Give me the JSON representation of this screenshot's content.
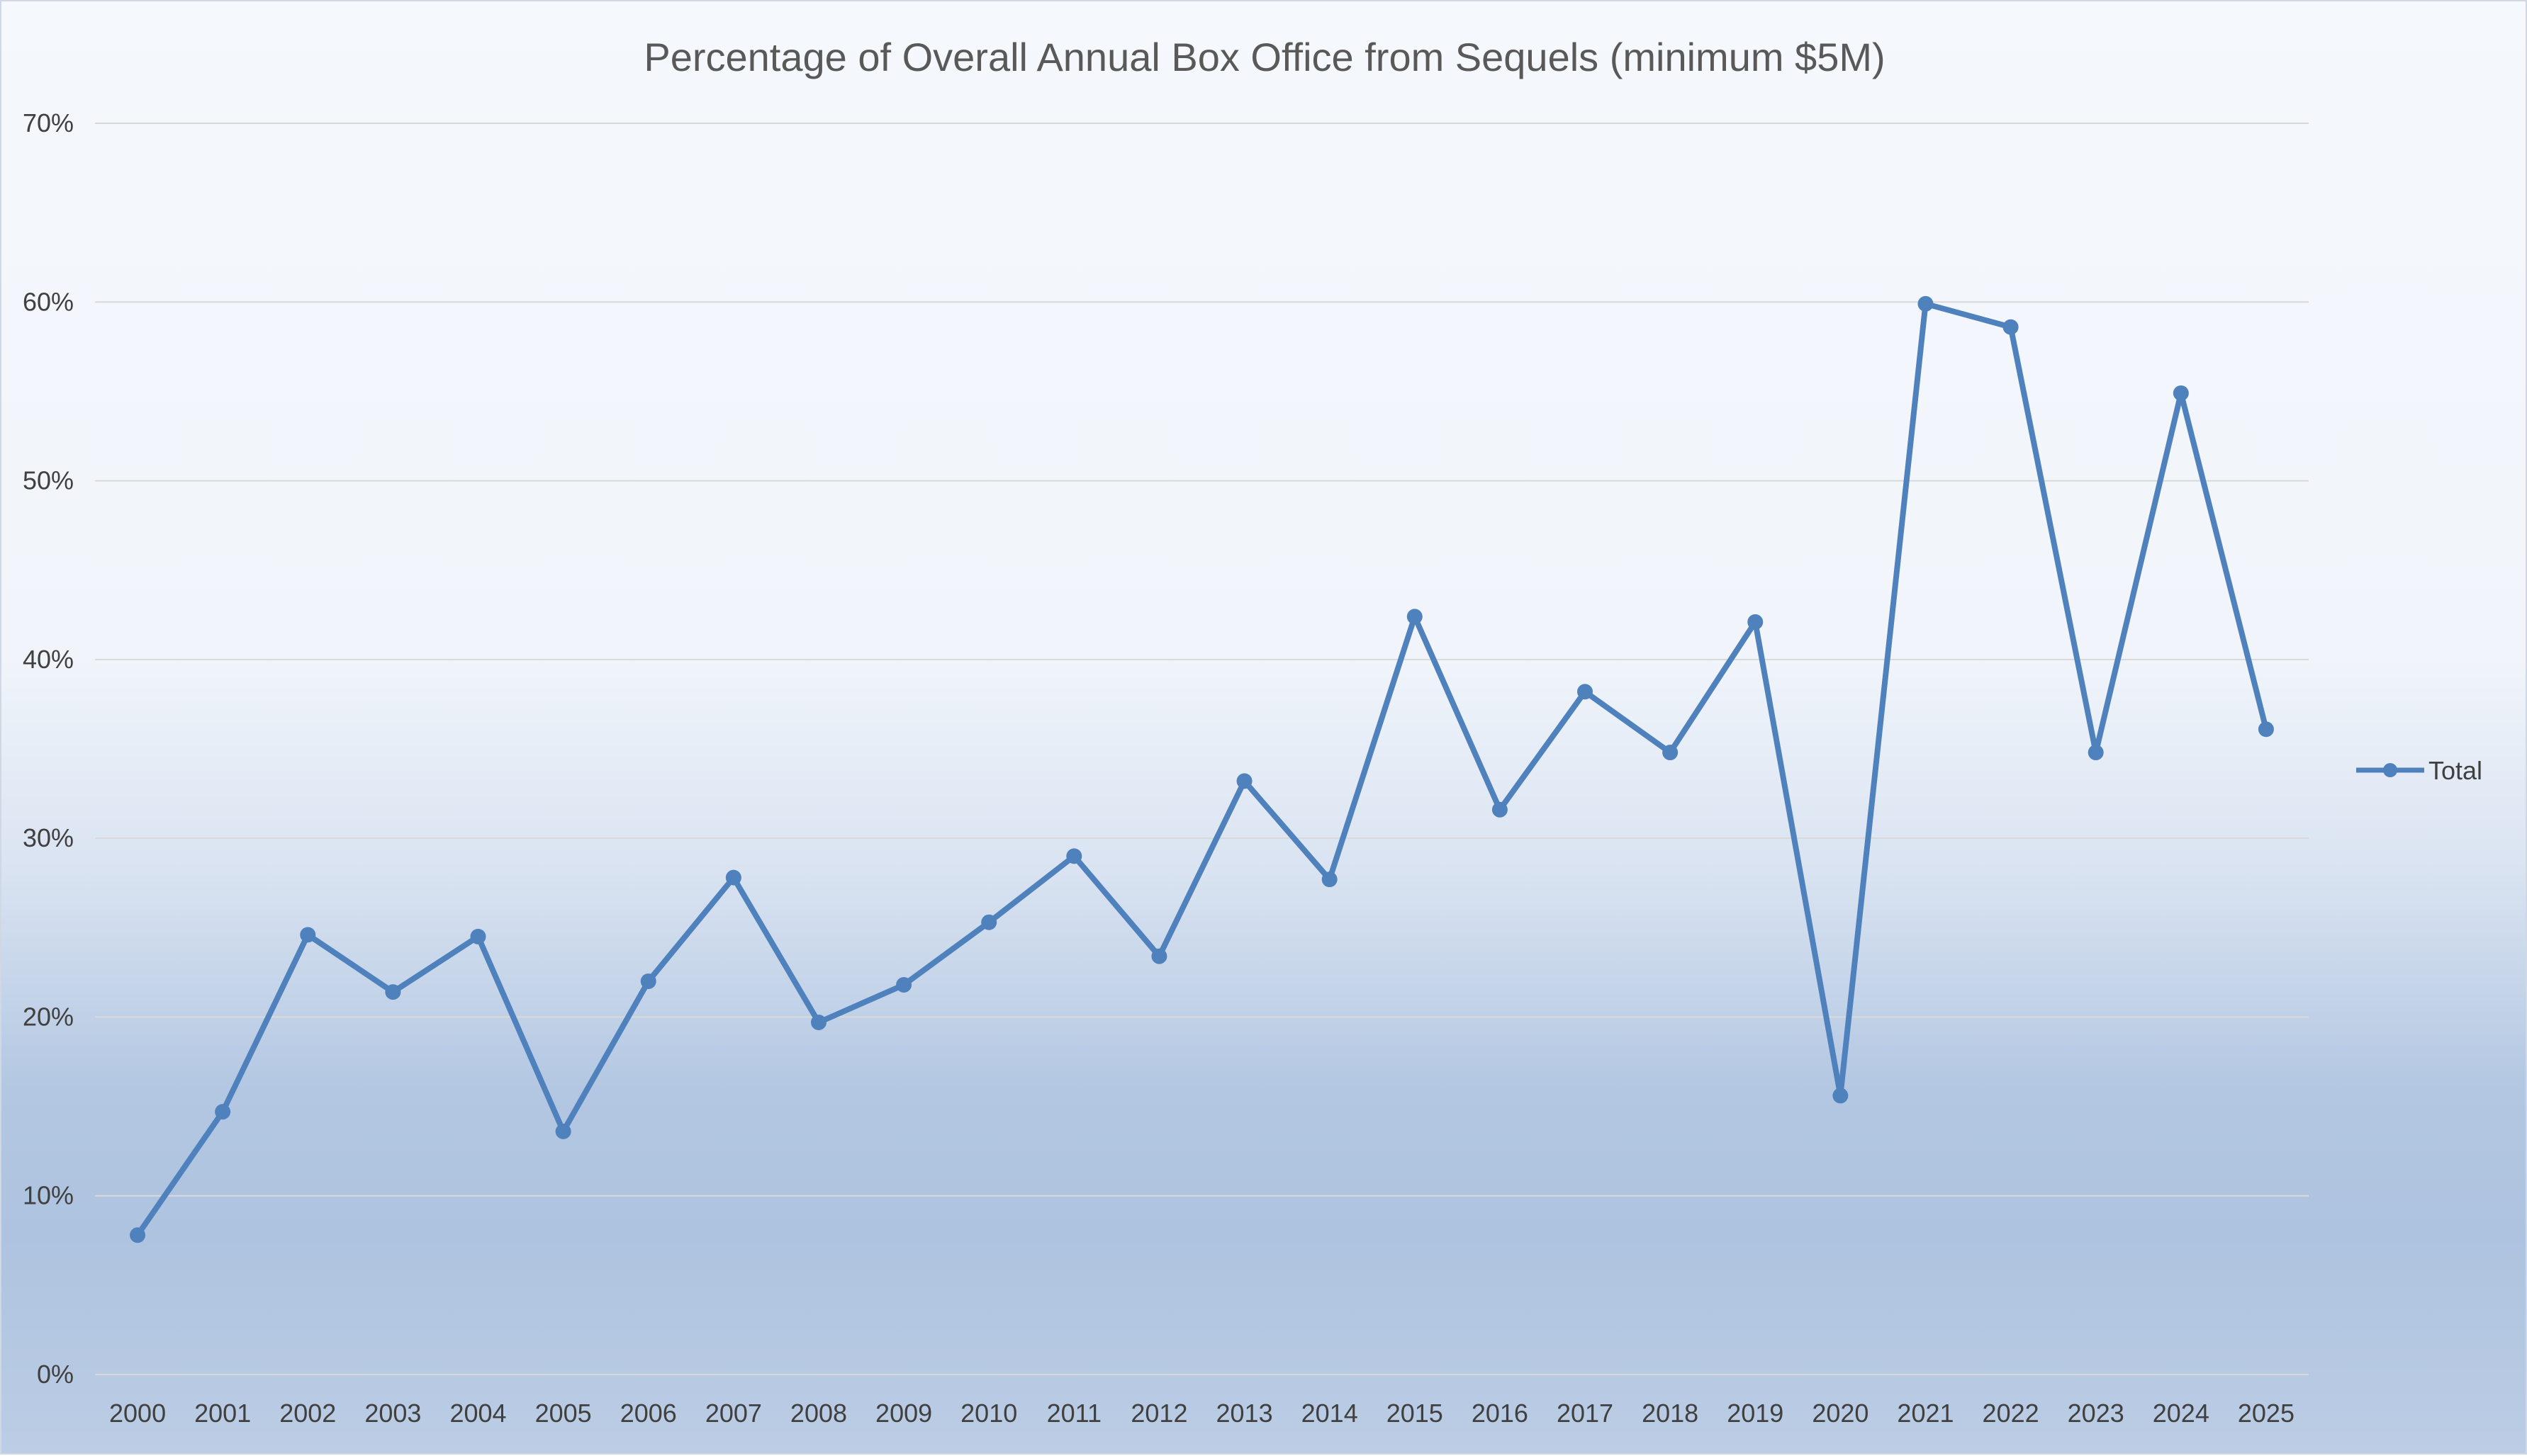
{
  "chart_data": {
    "type": "line",
    "title": "Percentage of Overall Annual Box Office from Sequels (minimum $5M)",
    "xlabel": "",
    "ylabel": "",
    "categories": [
      "2000",
      "2001",
      "2002",
      "2003",
      "2004",
      "2005",
      "2006",
      "2007",
      "2008",
      "2009",
      "2010",
      "2011",
      "2012",
      "2013",
      "2014",
      "2015",
      "2016",
      "2017",
      "2018",
      "2019",
      "2020",
      "2021",
      "2022",
      "2023",
      "2024",
      "2025"
    ],
    "series": [
      {
        "name": "Total",
        "values": [
          7.8,
          14.7,
          24.6,
          21.4,
          24.5,
          13.6,
          22.0,
          27.8,
          19.7,
          21.8,
          25.3,
          29.0,
          23.4,
          33.2,
          27.7,
          42.4,
          31.6,
          38.2,
          34.8,
          42.1,
          15.6,
          59.9,
          58.6,
          34.8,
          54.9,
          36.1
        ],
        "color": "#4f81bd"
      }
    ],
    "ylim": [
      0,
      70
    ],
    "yticks": [
      "0%",
      "10%",
      "20%",
      "30%",
      "40%",
      "50%",
      "60%",
      "70%"
    ],
    "grid": true,
    "legend_position": "right"
  }
}
